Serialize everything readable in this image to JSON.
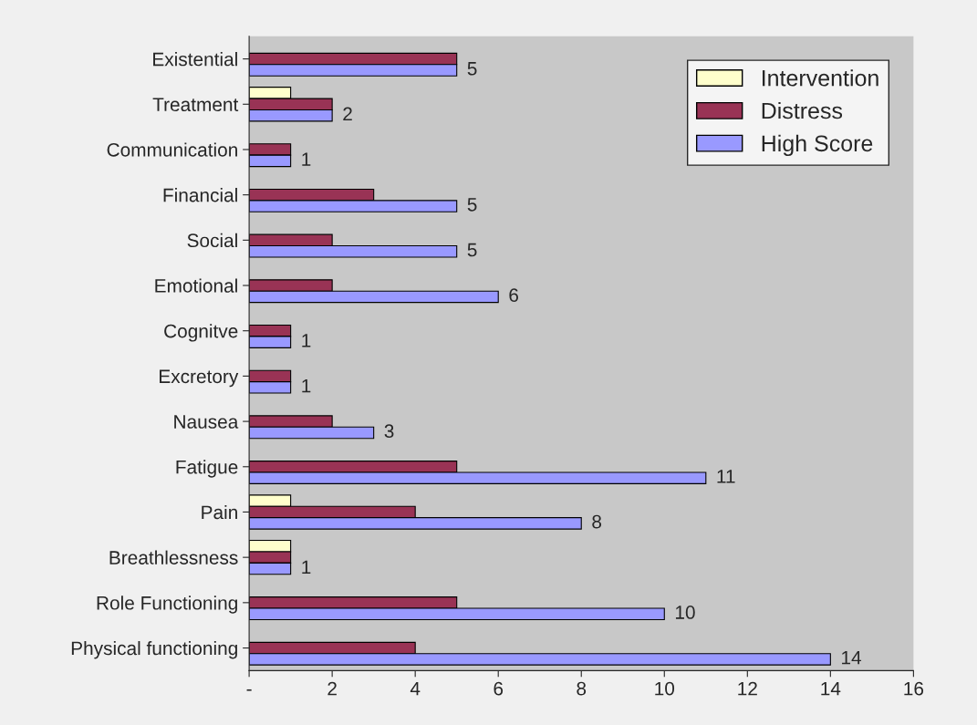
{
  "chart_data": {
    "type": "bar",
    "orientation": "horizontal",
    "categories": [
      "Existential",
      "Treatment",
      "Communication",
      "Financial",
      "Social",
      "Emotional",
      "Cognitve",
      "Excretory",
      "Nausea",
      "Fatigue",
      "Pain",
      "Breathlessness",
      "Role Functioning",
      "Physical functioning"
    ],
    "series": [
      {
        "name": "Intervention",
        "color": "#ffffcc",
        "values": [
          null,
          1,
          null,
          null,
          null,
          null,
          null,
          null,
          null,
          null,
          1,
          1,
          null,
          null
        ]
      },
      {
        "name": "Distress",
        "color": "#993355",
        "values": [
          5,
          2,
          1,
          3,
          2,
          2,
          1,
          1,
          2,
          5,
          4,
          1,
          5,
          4
        ]
      },
      {
        "name": "High Score",
        "color": "#9999ff",
        "values": [
          5,
          2,
          1,
          5,
          5,
          6,
          1,
          1,
          3,
          11,
          8,
          1,
          10,
          14
        ],
        "value_labels": [
          "5",
          "2",
          "1",
          "5",
          "5",
          "6",
          "1",
          "1",
          "3",
          "11",
          "8",
          "1",
          "10",
          "14"
        ]
      }
    ],
    "xlim": [
      0,
      16
    ],
    "xticks": [
      {
        "value": 0,
        "label": "-"
      },
      2,
      4,
      6,
      8,
      10,
      12,
      14,
      16
    ],
    "grid": false,
    "legend": "top right"
  }
}
